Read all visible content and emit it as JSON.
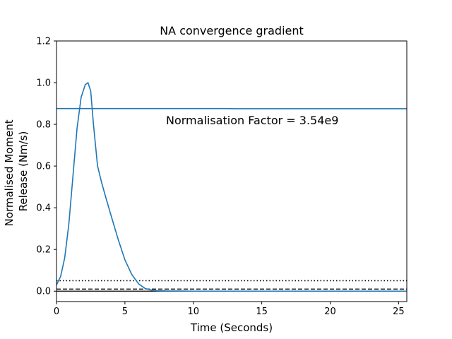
{
  "chart_data": {
    "type": "line",
    "title": "NA convergence gradient",
    "xlabel": "Time (Seconds)",
    "ylabel_lines": [
      "Normalised Moment",
      "Release (Nm/s)"
    ],
    "xlim": [
      0,
      25.6
    ],
    "ylim": [
      -0.05,
      1.2
    ],
    "x_ticks": [
      0,
      5,
      10,
      15,
      20,
      25
    ],
    "y_ticks": [
      0.0,
      0.2,
      0.4,
      0.6,
      0.8,
      1.0,
      1.2
    ],
    "x_tick_labels": [
      "0",
      "5",
      "10",
      "15",
      "20",
      "25"
    ],
    "y_tick_labels": [
      "0.0",
      "0.2",
      "0.4",
      "0.6",
      "0.8",
      "1.0",
      "1.2"
    ],
    "grid": false,
    "annotation": "Normalisation Factor = 3.54e9",
    "series": [
      {
        "color": "#1f77b4",
        "style": "solid",
        "x": [
          0,
          0.3,
          0.6,
          0.9,
          1.2,
          1.5,
          1.8,
          2.1,
          2.3,
          2.5,
          2.7,
          3.0,
          3.3,
          3.6,
          4.0,
          4.5,
          5.0,
          5.5,
          6.0,
          6.5,
          7.0,
          7.5,
          8.0,
          10.0,
          15.0,
          20.0,
          25.6
        ],
        "y": [
          0.03,
          0.07,
          0.16,
          0.32,
          0.55,
          0.78,
          0.93,
          0.99,
          1.0,
          0.96,
          0.8,
          0.6,
          0.52,
          0.45,
          0.36,
          0.25,
          0.15,
          0.08,
          0.035,
          0.012,
          0.004,
          0.002,
          0.001,
          0.0,
          0.0,
          0.0,
          0.0
        ]
      },
      {
        "color": "#1f77b4",
        "style": "solid",
        "x": [
          0,
          12.5,
          13,
          25.6
        ],
        "y": [
          0.876,
          0.876,
          0.875,
          0.875
        ]
      }
    ],
    "reference_lines": [
      {
        "y": 0.05,
        "style": "dotted",
        "color": "#000000"
      },
      {
        "y": 0.01,
        "style": "dashed",
        "color": "#000000"
      },
      {
        "y": 0.0,
        "style": "solid",
        "color": "#000000"
      }
    ]
  }
}
